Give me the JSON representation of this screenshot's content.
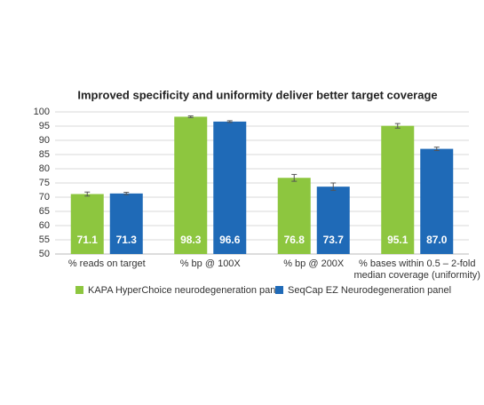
{
  "chart_data": {
    "type": "bar",
    "title": "Improved specificity and uniformity deliver better target coverage",
    "categories": [
      "% reads on target",
      "% bp @ 100X",
      "% bp @ 200X",
      "% bases within 0.5 – 2-fold median coverage (uniformity)"
    ],
    "series": [
      {
        "name": "KAPA HyperChoice neurodegeneration panel",
        "color": "#8dc63f",
        "values": [
          71.1,
          98.3,
          76.8,
          95.1
        ],
        "errors": [
          0.7,
          0.3,
          1.2,
          0.8
        ]
      },
      {
        "name": "SeqCap EZ Neurodegeneration panel",
        "color": "#1f6ab7",
        "values": [
          71.3,
          96.6,
          73.7,
          87.0
        ],
        "value_labels": [
          "71.3",
          "96.6",
          "73.7",
          "87.0"
        ],
        "errors": [
          0.4,
          0.3,
          1.3,
          0.6
        ]
      }
    ],
    "ylim": [
      50,
      100
    ],
    "yticks": [
      50,
      55,
      60,
      65,
      70,
      75,
      80,
      85,
      90,
      95,
      100
    ],
    "grid": true,
    "legend": "bottom"
  }
}
